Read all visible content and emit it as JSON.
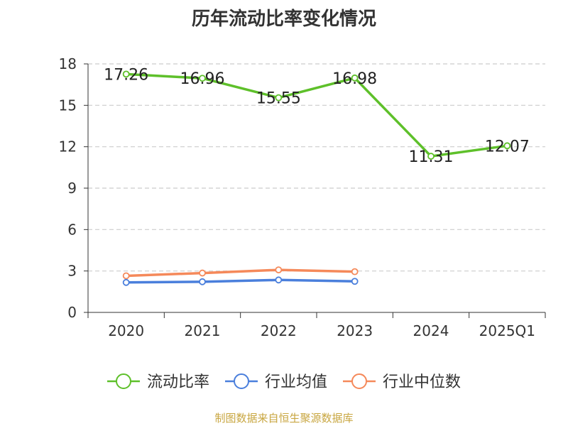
{
  "colors": {
    "current_ratio": "#5ec02a",
    "industry_mean": "#4a7fdc",
    "industry_median": "#f5895a",
    "grid": "#cccccc",
    "axis": "#333333",
    "source": "#c8a640"
  },
  "source_note": "制图数据来自恒生聚源数据库",
  "chart_data": {
    "type": "line",
    "title": "历年流动比率变化情况",
    "categories": [
      "2020",
      "2021",
      "2022",
      "2023",
      "2024",
      "2025Q1"
    ],
    "ylim": [
      0,
      18
    ],
    "yticks": [
      0,
      3,
      6,
      9,
      12,
      15,
      18
    ],
    "grid": true,
    "legend_position": "bottom",
    "series": [
      {
        "name": "流动比率",
        "color": "#5ec02a",
        "values": [
          17.26,
          16.96,
          15.55,
          16.98,
          11.31,
          12.07
        ],
        "show_labels": true
      },
      {
        "name": "行业均值",
        "color": "#4a7fdc",
        "values": [
          2.17,
          2.22,
          2.35,
          2.25,
          null,
          null
        ],
        "show_labels": false
      },
      {
        "name": "行业中位数",
        "color": "#f5895a",
        "values": [
          2.65,
          2.85,
          3.08,
          2.95,
          null,
          null
        ],
        "show_labels": false
      }
    ]
  }
}
